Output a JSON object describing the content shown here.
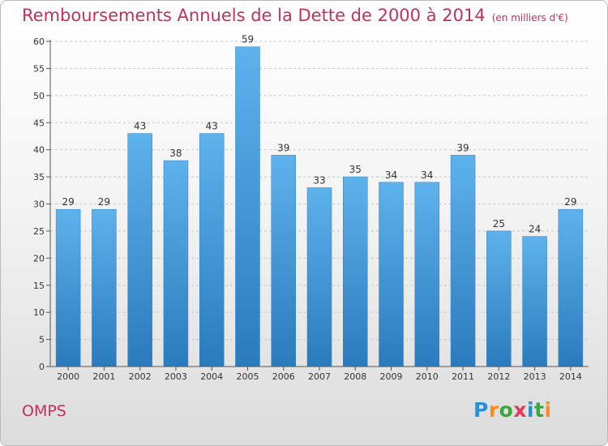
{
  "header": {
    "title": "Remboursements Annuels de la Dette de 2000 à 2014",
    "unit": "(en milliers d'€)"
  },
  "footer": {
    "commune": "OMPS",
    "logo_text": "Proxiti",
    "logo_colors": [
      "#2c8fd0",
      "#ff8c1a",
      "#37a83a",
      "#e8385a",
      "#2c8fd0",
      "#37a83a",
      "#ff8c1a"
    ]
  },
  "colors": {
    "title": "#c0325c",
    "bar_top": "#5eb2ec",
    "bar_bottom": "#2a7bbd",
    "axis": "#555555",
    "grid": "#c8c8c8"
  },
  "chart_data": {
    "type": "bar",
    "title": "Remboursements Annuels de la Dette de 2000 à 2014",
    "subtitle": "(en milliers d'€)",
    "xlabel": "",
    "ylabel": "",
    "categories": [
      "2000",
      "2001",
      "2002",
      "2003",
      "2004",
      "2005",
      "2006",
      "2007",
      "2008",
      "2009",
      "2010",
      "2011",
      "2012",
      "2013",
      "2014"
    ],
    "values": [
      29,
      29,
      43,
      38,
      43,
      59,
      39,
      33,
      35,
      34,
      34,
      39,
      25,
      24,
      29
    ],
    "ylim": [
      0,
      60
    ],
    "yticks": [
      0,
      5,
      10,
      15,
      20,
      25,
      30,
      35,
      40,
      45,
      50,
      55,
      60
    ],
    "grid": "horizontal dashed",
    "data_labels": true,
    "legend": "none"
  }
}
